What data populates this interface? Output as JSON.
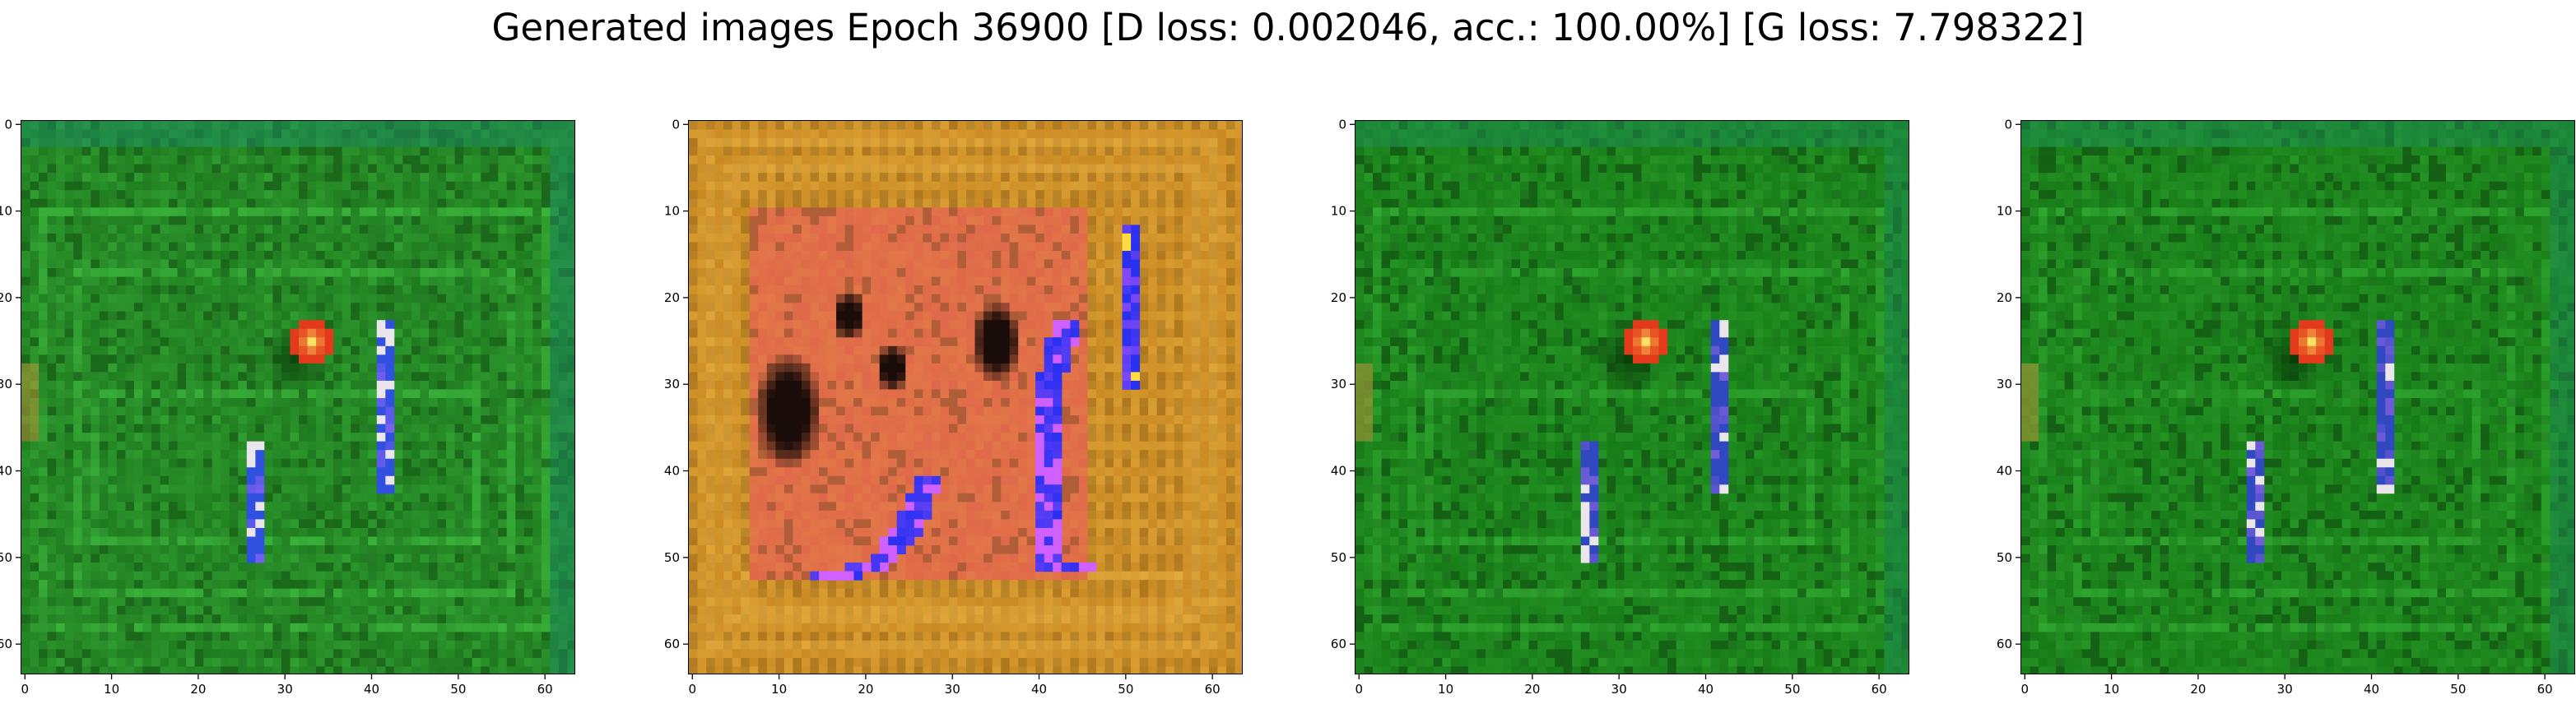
{
  "title": "Generated images Epoch 36900 [D loss: 0.002046, acc.: 100.00%] [G loss: 7.798322]",
  "chart_data": [
    {
      "type": "heatmap",
      "subplot": 1,
      "xlim": [
        -0.5,
        63.5
      ],
      "ylim": [
        63.5,
        -0.5
      ],
      "xticks": [
        0,
        10,
        20,
        30,
        40,
        50,
        60
      ],
      "yticks": [
        0,
        10,
        20,
        30,
        40,
        50,
        60
      ],
      "grid": false,
      "colors": {
        "background": "#1f7a1f",
        "accent": "#40c040",
        "dark": "#0a3a0a",
        "blob": "#e23a1a",
        "blob_core": "#ffe060",
        "streak": "#3050e0",
        "streak_hi": "#c070ff",
        "edge": "#1a8a6a"
      },
      "features": {
        "blob": [
          33,
          25
        ],
        "streaks": [
          {
            "x": 41,
            "y": [
              23,
              42
            ]
          },
          {
            "x": 26,
            "y": [
              37,
              50
            ]
          }
        ],
        "frames": [
          [
            2,
            60,
            10,
            58
          ],
          [
            6,
            56,
            17,
            54
          ],
          [
            8,
            52,
            31,
            48
          ]
        ]
      }
    },
    {
      "type": "heatmap",
      "subplot": 2,
      "xlim": [
        -0.5,
        63.5
      ],
      "ylim": [
        63.5,
        -0.5
      ],
      "xticks": [
        0,
        10,
        20,
        30,
        40,
        50,
        60
      ],
      "yticks": [
        0,
        10,
        20,
        30,
        40,
        50,
        60
      ],
      "grid": false,
      "colors": {
        "background": "#c98a22",
        "accent": "#e8b040",
        "inner": "#e0684a",
        "dark": "#1a0c08",
        "streak": "#2a30f0",
        "streak_hi": "#d060ff",
        "hot": "#ffdd40"
      },
      "features": {
        "inner_rect": [
          7,
          10,
          45,
          52
        ],
        "dark_blobs": [
          [
            11,
            33,
            4,
            7
          ],
          [
            35,
            25,
            3,
            5
          ],
          [
            23,
            28,
            2,
            3
          ],
          [
            18,
            22,
            2,
            3
          ]
        ],
        "streaks": [
          {
            "path": [
              [
                27,
                41
              ],
              [
                25,
                46
              ],
              [
                21,
                51
              ],
              [
                15,
                52
              ]
            ]
          },
          {
            "path": [
              [
                43,
                23
              ],
              [
                41,
                30
              ],
              [
                41,
                40
              ],
              [
                41,
                51
              ],
              [
                45,
                51
              ]
            ]
          },
          {
            "x": 50,
            "y": [
              12,
              30
            ]
          }
        ],
        "frames": [
          [
            2,
            60,
            2,
            60
          ],
          [
            4,
            58,
            5,
            57
          ],
          [
            6,
            56,
            52,
            56
          ]
        ]
      }
    },
    {
      "type": "heatmap",
      "subplot": 3,
      "xlim": [
        -0.5,
        63.5
      ],
      "ylim": [
        63.5,
        -0.5
      ],
      "xticks": [
        0,
        10,
        20,
        30,
        40,
        50,
        60
      ],
      "yticks": [
        0,
        10,
        20,
        30,
        40,
        50,
        60
      ],
      "grid": false,
      "colors": {
        "background": "#177a17",
        "accent": "#34b034",
        "dark": "#073207",
        "blob": "#e23a1a",
        "blob_core": "#ffe060",
        "streak": "#3048c0",
        "streak_hi": "#b070f0",
        "edge": "#1c8c5c"
      },
      "features": {
        "blob": [
          33,
          25
        ],
        "streaks": [
          {
            "x": 41,
            "y": [
              23,
              42
            ]
          },
          {
            "x": 26,
            "y": [
              37,
              50
            ]
          }
        ],
        "frames": [
          [
            2,
            60,
            10,
            58
          ],
          [
            6,
            56,
            17,
            54
          ],
          [
            8,
            52,
            31,
            48
          ]
        ]
      }
    },
    {
      "type": "heatmap",
      "subplot": 4,
      "xlim": [
        -0.5,
        63.5
      ],
      "ylim": [
        63.5,
        -0.5
      ],
      "xticks": [
        0,
        10,
        20,
        30,
        40,
        50,
        60
      ],
      "yticks": [
        0,
        10,
        20,
        30,
        40,
        50,
        60
      ],
      "grid": false,
      "colors": {
        "background": "#177a17",
        "accent": "#34b034",
        "dark": "#073207",
        "blob": "#e23a1a",
        "blob_core": "#ffe060",
        "streak": "#3048c0",
        "streak_hi": "#b070f0",
        "edge": "#1c8c5c"
      },
      "features": {
        "blob": [
          33,
          25
        ],
        "streaks": [
          {
            "x": 41,
            "y": [
              23,
              42
            ]
          },
          {
            "x": 26,
            "y": [
              37,
              50
            ]
          }
        ],
        "frames": [
          [
            2,
            60,
            10,
            58
          ],
          [
            6,
            56,
            17,
            54
          ],
          [
            8,
            52,
            31,
            48
          ]
        ]
      }
    }
  ]
}
